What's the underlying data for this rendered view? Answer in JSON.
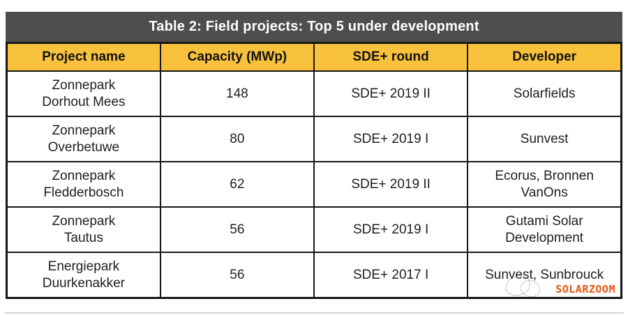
{
  "title": "Table 2: Field projects: Top 5 under development",
  "table": {
    "headers": [
      "Project name",
      "Capacity (MWp)",
      "SDE+ round",
      "Developer"
    ],
    "rows": [
      {
        "project": "Zonnepark\nDorhout Mees",
        "capacity": "148",
        "sde_round": "SDE+ 2019 II",
        "developer": "Solarfields"
      },
      {
        "project": "Zonnepark\nOverbetuwe",
        "capacity": "80",
        "sde_round": "SDE+ 2019 I",
        "developer": "Sunvest"
      },
      {
        "project": "Zonnepark\nFledderbosch",
        "capacity": "62",
        "sde_round": "SDE+ 2019 II",
        "developer": "Ecorus, Bronnen\nVanOns"
      },
      {
        "project": "Zonnepark\nTautus",
        "capacity": "56",
        "sde_round": "SDE+ 2019 I",
        "developer": "Gutami Solar\nDevelopment"
      },
      {
        "project": "Energiepark\nDuurkenakker",
        "capacity": "56",
        "sde_round": "SDE+ 2017 I",
        "developer": "Sunvest, Sunbrouck"
      }
    ]
  },
  "watermark": {
    "text": "SOLARZOOM"
  },
  "colors": {
    "title_bar_bg": "#4e4e4e",
    "title_text": "#ffffff",
    "header_bg": "#f9c23c",
    "header_text": "#121212",
    "border": "#161616",
    "cell_text": "#1e1e1e",
    "watermark_text": "#e8530e"
  }
}
